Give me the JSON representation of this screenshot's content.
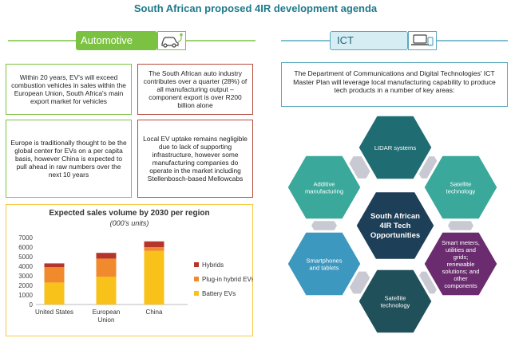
{
  "title": "South African proposed 4IR development agenda",
  "automotive": {
    "label": "Automotive",
    "icon": "electric-car-icon",
    "boxes": [
      "Within 20 years, EV's will exceed combustion vehicles in sales within the European Union, South Africa's main export market for vehicles",
      "The South African auto industry contributes over a quarter (28%) of all manufacturing output – component export is over R200 billion alone",
      "Europe is traditionally thought to be the global center for EVs on a per capita basis, however China is expected to pull ahead in raw numbers over the next 10 years",
      "Local EV uptake remains negligible due to lack of supporting infrastructure, however some manufacturing companies do operate in the market including Stellenbosch-based Mellowcabs"
    ]
  },
  "chart_data": {
    "type": "bar",
    "stacked": true,
    "title": "Expected sales volume by 2030 per region",
    "subtitle": "(000's units)",
    "categories": [
      "United States",
      "European Union",
      "China"
    ],
    "category_lines": [
      [
        "United States"
      ],
      [
        "European",
        "Union"
      ],
      [
        "China"
      ]
    ],
    "series": [
      {
        "name": "Battery EVs",
        "color": "#f9c21a",
        "values": [
          2300,
          2900,
          5600
        ]
      },
      {
        "name": "Plug-in hybrid EVs",
        "color": "#f08a2c",
        "values": [
          1600,
          1900,
          400
        ]
      },
      {
        "name": "Hybrids",
        "color": "#b5352a",
        "values": [
          400,
          600,
          600
        ]
      }
    ],
    "legend_order": [
      "Hybrids",
      "Plug-in hybrid EVs",
      "Battery EVs"
    ],
    "ylim": [
      0,
      7000
    ],
    "yticks": [
      0,
      1000,
      2000,
      3000,
      4000,
      5000,
      6000,
      7000
    ],
    "grid": false,
    "legend_position": "right"
  },
  "ict": {
    "label": "ICT",
    "icon": "devices-icon",
    "intro": "The Department of Communications and Digital Technologies' ICT Master Plan will leverage local manufacturing capability to produce tech products in a number of key areas:",
    "center": [
      "South African",
      "4IR Tech",
      "Opportunities"
    ],
    "hexagons": [
      {
        "lines": [
          "LIDAR systems"
        ],
        "color": "#1f6d73"
      },
      {
        "lines": [
          "Satellite",
          "technology"
        ],
        "color": "#3aa89a"
      },
      {
        "lines": [
          "Smart meters,",
          "utilities and",
          "grids;",
          "renewable",
          "solutions; and",
          "other",
          "components"
        ],
        "color": "#6a2c6e"
      },
      {
        "lines": [
          "Satellite",
          "technology"
        ],
        "color": "#20505a"
      },
      {
        "lines": [
          "Smartphones",
          "and tablets"
        ],
        "color": "#3d98c0"
      },
      {
        "lines": [
          "Additive",
          "manufacturing"
        ],
        "color": "#3aa89a"
      }
    ]
  }
}
